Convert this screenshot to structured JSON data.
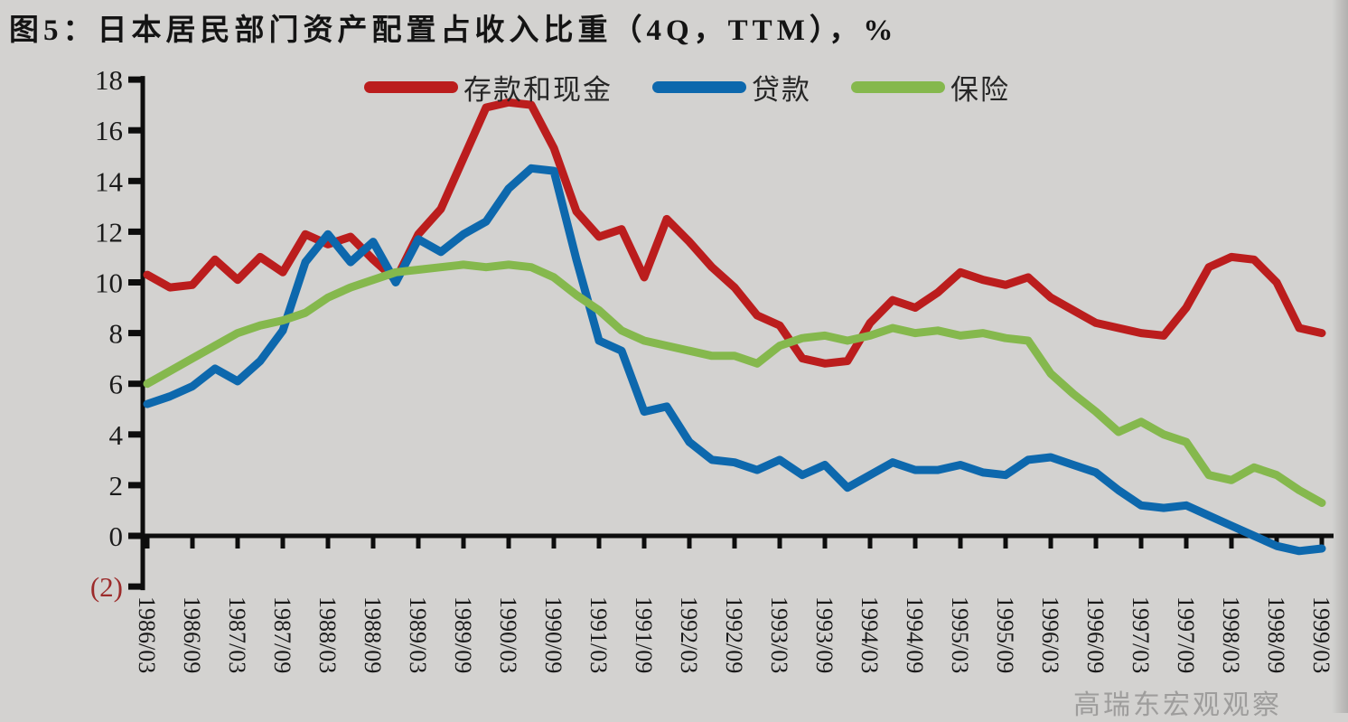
{
  "title": "图5：日本居民部门资产配置占收入比重（4Q，TTM），%",
  "watermark": "高瑞东宏观观察",
  "colors": {
    "background": "#d3d2d0",
    "axis": "#0d0d0d",
    "tick_label": "#1a1a1a",
    "negative_tick_label": "#9c2b2b",
    "deposits_cash": "#bb1d1d",
    "loans": "#0d68ad",
    "insurance": "#85b84d"
  },
  "chart_data": {
    "type": "line",
    "title": "图5：日本居民部门资产配置占收入比重（4Q，TTM），%",
    "xlabel": "",
    "ylabel": "%",
    "ylim": [
      -2,
      18
    ],
    "grid": false,
    "legend_position": "top-center",
    "yticks": [
      {
        "value": 18,
        "label": "18"
      },
      {
        "value": 16,
        "label": "16"
      },
      {
        "value": 14,
        "label": "14"
      },
      {
        "value": 12,
        "label": "12"
      },
      {
        "value": 10,
        "label": "10"
      },
      {
        "value": 8,
        "label": "8"
      },
      {
        "value": 6,
        "label": "6"
      },
      {
        "value": 4,
        "label": "4"
      },
      {
        "value": 2,
        "label": "2"
      },
      {
        "value": 0,
        "label": "0"
      },
      {
        "value": -2,
        "label": "(2)"
      }
    ],
    "x_tick_labels": [
      "1986/03",
      "1986/09",
      "1987/03",
      "1987/09",
      "1988/03",
      "1988/09",
      "1989/03",
      "1989/09",
      "1990/03",
      "1990/09",
      "1991/03",
      "1991/09",
      "1992/03",
      "1992/09",
      "1993/03",
      "1993/09",
      "1994/03",
      "1994/09",
      "1995/03",
      "1995/09",
      "1996/03",
      "1996/09",
      "1997/03",
      "1997/09",
      "1998/03",
      "1998/09",
      "1999/03"
    ],
    "x": [
      "1986/03",
      "1986/06",
      "1986/09",
      "1986/12",
      "1987/03",
      "1987/06",
      "1987/09",
      "1987/12",
      "1988/03",
      "1988/06",
      "1988/09",
      "1988/12",
      "1989/03",
      "1989/06",
      "1989/09",
      "1989/12",
      "1990/03",
      "1990/06",
      "1990/09",
      "1990/12",
      "1991/03",
      "1991/06",
      "1991/09",
      "1991/12",
      "1992/03",
      "1992/06",
      "1992/09",
      "1992/12",
      "1993/03",
      "1993/06",
      "1993/09",
      "1993/12",
      "1994/03",
      "1994/06",
      "1994/09",
      "1994/12",
      "1995/03",
      "1995/06",
      "1995/09",
      "1995/12",
      "1996/03",
      "1996/06",
      "1996/09",
      "1996/12",
      "1997/03",
      "1997/06",
      "1997/09",
      "1997/12",
      "1998/03",
      "1998/06",
      "1998/09",
      "1998/12",
      "1999/03"
    ],
    "series": [
      {
        "name": "存款和现金",
        "color": "#bb1d1d",
        "values": [
          10.3,
          9.8,
          9.9,
          10.9,
          10.1,
          11.0,
          10.4,
          11.9,
          11.5,
          11.8,
          10.9,
          10.1,
          11.9,
          12.9,
          14.9,
          16.9,
          17.1,
          17.0,
          15.3,
          12.8,
          11.8,
          12.1,
          10.2,
          12.5,
          11.6,
          10.6,
          9.8,
          8.7,
          8.3,
          7.0,
          6.8,
          6.9,
          8.4,
          9.3,
          9.0,
          9.6,
          10.4,
          10.1,
          9.9,
          10.2,
          9.4,
          8.9,
          8.4,
          8.2,
          8.0,
          7.9,
          9.0,
          10.6,
          11.0,
          10.9,
          10.0,
          8.2,
          8.0
        ]
      },
      {
        "name": "贷款",
        "color": "#0d68ad",
        "values": [
          5.2,
          5.5,
          5.9,
          6.6,
          6.1,
          6.9,
          8.1,
          10.8,
          11.9,
          10.8,
          11.6,
          10.0,
          11.7,
          11.2,
          11.9,
          12.4,
          13.7,
          14.5,
          14.4,
          10.9,
          7.7,
          7.3,
          4.9,
          5.1,
          3.7,
          3.0,
          2.9,
          2.6,
          3.0,
          2.4,
          2.8,
          1.9,
          2.4,
          2.9,
          2.6,
          2.6,
          2.8,
          2.5,
          2.4,
          3.0,
          3.1,
          2.8,
          2.5,
          1.8,
          1.2,
          1.1,
          1.2,
          0.8,
          0.4,
          0.0,
          -0.4,
          -0.6,
          -0.5
        ]
      },
      {
        "name": "保险",
        "color": "#85b84d",
        "values": [
          6.0,
          6.5,
          7.0,
          7.5,
          8.0,
          8.3,
          8.5,
          8.8,
          9.4,
          9.8,
          10.1,
          10.4,
          10.5,
          10.6,
          10.7,
          10.6,
          10.7,
          10.6,
          10.2,
          9.5,
          8.9,
          8.1,
          7.7,
          7.5,
          7.3,
          7.1,
          7.1,
          6.8,
          7.5,
          7.8,
          7.9,
          7.7,
          7.9,
          8.2,
          8.0,
          8.1,
          7.9,
          8.0,
          7.8,
          7.7,
          6.4,
          5.6,
          4.9,
          4.1,
          4.5,
          4.0,
          3.7,
          2.4,
          2.2,
          2.7,
          2.4,
          1.8,
          1.3
        ]
      }
    ]
  }
}
